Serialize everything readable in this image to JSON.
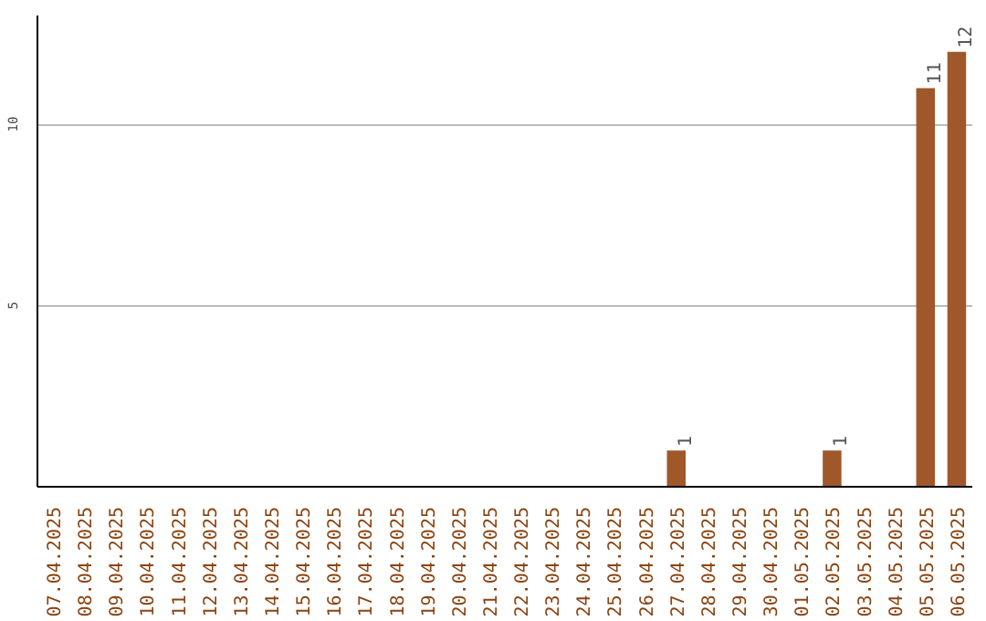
{
  "chart_data": {
    "type": "bar",
    "categories": [
      "07.04.2025",
      "08.04.2025",
      "09.04.2025",
      "10.04.2025",
      "11.04.2025",
      "12.04.2025",
      "13.04.2025",
      "14.04.2025",
      "15.04.2025",
      "16.04.2025",
      "17.04.2025",
      "18.04.2025",
      "19.04.2025",
      "20.04.2025",
      "21.04.2025",
      "22.04.2025",
      "23.04.2025",
      "24.04.2025",
      "25.04.2025",
      "26.04.2025",
      "27.04.2025",
      "28.04.2025",
      "29.04.2025",
      "30.04.2025",
      "01.05.2025",
      "02.05.2025",
      "03.05.2025",
      "04.05.2025",
      "05.05.2025",
      "06.05.2025"
    ],
    "values": [
      0,
      0,
      0,
      0,
      0,
      0,
      0,
      0,
      0,
      0,
      0,
      0,
      0,
      0,
      0,
      0,
      0,
      0,
      0,
      0,
      1,
      0,
      0,
      0,
      0,
      1,
      0,
      0,
      11,
      12
    ],
    "value_labels": [
      null,
      null,
      null,
      null,
      null,
      null,
      null,
      null,
      null,
      null,
      null,
      null,
      null,
      null,
      null,
      null,
      null,
      null,
      null,
      null,
      "1",
      null,
      null,
      null,
      null,
      "1",
      null,
      null,
      "11",
      "12"
    ],
    "color": "#a0582a",
    "ylim": [
      0,
      13
    ],
    "yticks": [
      5,
      10
    ],
    "grid": "y"
  }
}
